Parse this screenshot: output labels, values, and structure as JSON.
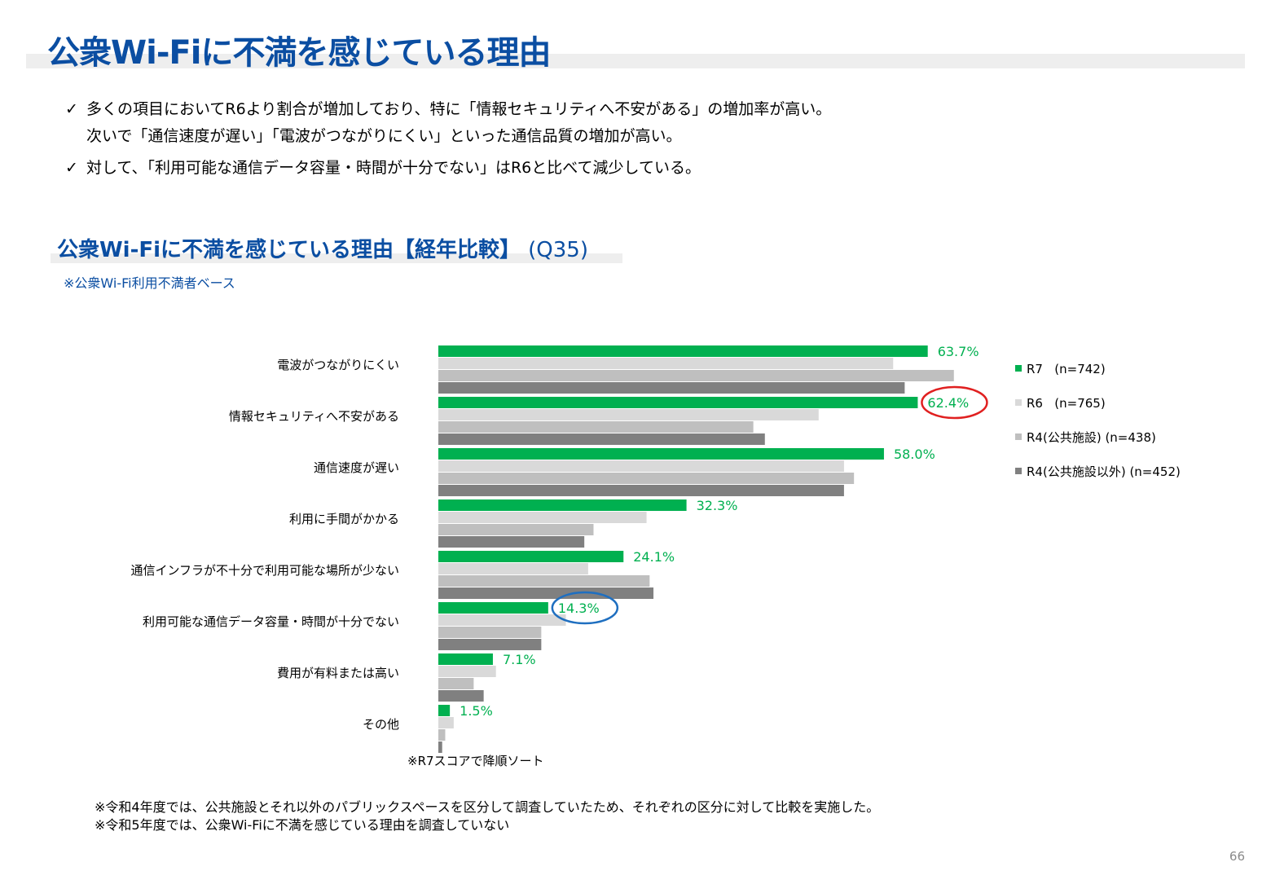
{
  "title": "公衆Wi-Fiに不満を感じている理由",
  "bullets": [
    {
      "check": "✓",
      "line1": "多くの項目においてR6より割合が増加しており、特に「情報セキュリティへ不安がある」の増加率が高い。",
      "line2": "次いで「通信速度が遅い」「電波がつながりにくい」といった通信品質の増加が高い。"
    },
    {
      "check": "✓",
      "line1": "対して、「利用可能な通信データ容量・時間が十分でない」はR6と比べて減少している。"
    }
  ],
  "subtitle": {
    "main": "公衆Wi-Fiに不満を感じている理由【経年比較】",
    "question": "(Q35)"
  },
  "base_note": "※公衆Wi-Fi利用不満者ベース",
  "sort_note": "※R7スコアで降順ソート",
  "footnotes": [
    "※令和4年度では、公共施設とそれ以外のパブリックスペースを区分して調査していたため、それぞれの区分に対して比較を実施した。",
    "※令和5年度では、公衆Wi-Fiに不満を感じている理由を調査していない"
  ],
  "page_number": "66",
  "colors": {
    "title": "#0b4ea2",
    "r7": "#00b050",
    "r6": "#d9d9d9",
    "r4a": "#bfbfbf",
    "r4b": "#808080",
    "highlight_red": "#e02020",
    "highlight_blue": "#1f6fc0"
  },
  "chart_data": {
    "type": "bar",
    "orientation": "horizontal",
    "title": "公衆Wi-Fiに不満を感じている理由【経年比較】 (Q35)",
    "unit": "%",
    "xlim": [
      0,
      100
    ],
    "categories": [
      "電波がつながりにくい",
      "情報セキュリティへ不安がある",
      "通信速度が遅い",
      "利用に手間がかかる",
      "通信インフラが不十分で利用可能な場所が少ない",
      "利用可能な通信データ容量・時間が十分でない",
      "費用が有料または高い",
      "その他"
    ],
    "series": [
      {
        "name": "R7",
        "n": "(n=742)",
        "color": "#00b050",
        "values": [
          63.7,
          62.4,
          58.0,
          32.3,
          24.1,
          14.3,
          7.1,
          1.5
        ],
        "labels": [
          "63.7%",
          "62.4%",
          "58.0%",
          "32.3%",
          "24.1%",
          "14.3%",
          "7.1%",
          "1.5%"
        ]
      },
      {
        "name": "R6",
        "n": "(n=765)",
        "color": "#d9d9d9",
        "values": [
          59.2,
          49.5,
          52.8,
          27.1,
          19.5,
          16.6,
          7.5,
          2.0
        ]
      },
      {
        "name": "R4(公共施設)",
        "n": "(n=438)",
        "color": "#bfbfbf",
        "values": [
          67.1,
          41.0,
          54.1,
          20.2,
          27.5,
          13.4,
          4.6,
          0.9
        ]
      },
      {
        "name": "R4(公共施設以外)",
        "n": "(n=452)",
        "color": "#808080",
        "values": [
          60.7,
          42.5,
          52.8,
          19.0,
          28.0,
          13.4,
          5.9,
          0.5
        ]
      }
    ],
    "highlights": [
      {
        "category_index": 1,
        "series": "R7",
        "label": "62.4%",
        "color": "#e02020"
      },
      {
        "category_index": 5,
        "series": "R7",
        "label": "14.3%",
        "color": "#1f6fc0"
      }
    ],
    "legend_position": "right"
  }
}
